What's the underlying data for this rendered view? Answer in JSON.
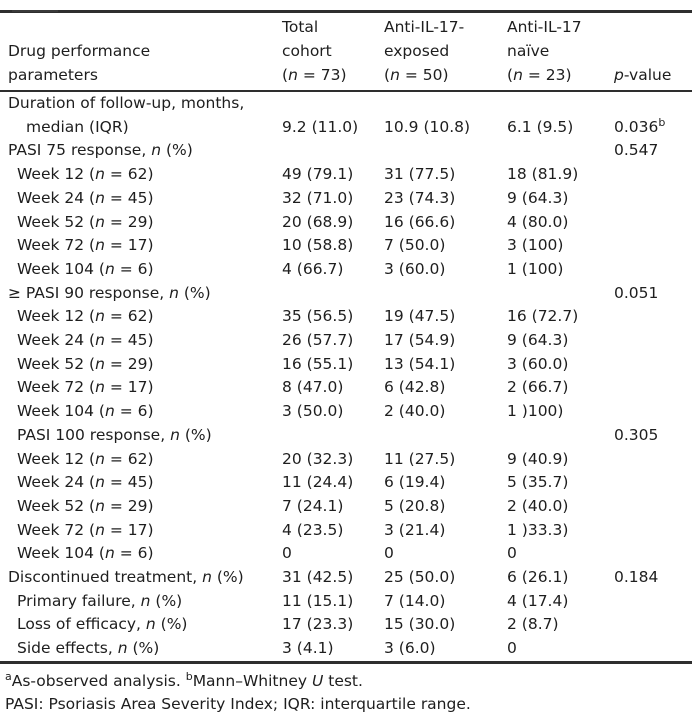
{
  "colors": {
    "background": "#ffffff",
    "text": "#1e1e1e",
    "rule": "#2e2e2e"
  },
  "table": {
    "header": {
      "parameters": "Drug performance\nparameters",
      "total_cohort": "Total\ncohort\n(*n* = 73)",
      "exposed": "Anti-IL-17-\nexposed\n(*n* = 50)",
      "naive": "Anti-IL-17\nnaïve\n(*n* = 23)",
      "p_value": "*p*-value"
    },
    "rows": [
      {
        "label": "Duration of follow-up, months,\nmedian (IQR)",
        "indent": 0,
        "hang": true,
        "total": "9.2 (11.0)",
        "exposed": "10.9 (10.8)",
        "naive": "6.1 (9.5)",
        "p": "0.036^b^"
      },
      {
        "label": "PASI 75 response, *n* (%)",
        "indent": 0,
        "total": "",
        "exposed": "",
        "naive": "",
        "p": "0.547"
      },
      {
        "label": "Week 12 (*n* = 62)",
        "indent": 1,
        "total": "49 (79.1)",
        "exposed": "31 (77.5)",
        "naive": "18 (81.9)",
        "p": ""
      },
      {
        "label": "Week 24 (*n* = 45)",
        "indent": 1,
        "total": "32 (71.0)",
        "exposed": "23 (74.3)",
        "naive": "9 (64.3)",
        "p": ""
      },
      {
        "label": "Week 52 (*n* = 29)",
        "indent": 1,
        "total": "20 (68.9)",
        "exposed": "16 (66.6)",
        "naive": "4 (80.0)",
        "p": ""
      },
      {
        "label": "Week 72 (*n* = 17)",
        "indent": 1,
        "total": "10 (58.8)",
        "exposed": "7 (50.0)",
        "naive": "3 (100)",
        "p": ""
      },
      {
        "label": "Week 104 (*n* = 6)",
        "indent": 1,
        "total": "4 (66.7)",
        "exposed": "3 (60.0)",
        "naive": "1 (100)",
        "p": ""
      },
      {
        "label": "≥ PASI 90 response, *n* (%)",
        "indent": 0,
        "total": "",
        "exposed": "",
        "naive": "",
        "p": "0.051"
      },
      {
        "label": "Week 12 (*n* = 62)",
        "indent": 1,
        "total": "35 (56.5)",
        "exposed": "19 (47.5)",
        "naive": "16 (72.7)",
        "p": ""
      },
      {
        "label": "Week 24 (*n* = 45)",
        "indent": 1,
        "total": "26 (57.7)",
        "exposed": "17 (54.9)",
        "naive": "9 (64.3)",
        "p": ""
      },
      {
        "label": "Week 52 (*n* = 29)",
        "indent": 1,
        "total": "16 (55.1)",
        "exposed": "13 (54.1)",
        "naive": "3 (60.0)",
        "p": ""
      },
      {
        "label": "Week 72 (*n* = 17)",
        "indent": 1,
        "total": "8 (47.0)",
        "exposed": "6 (42.8)",
        "naive": "2 (66.7)",
        "p": ""
      },
      {
        "label": "Week 104 (*n* = 6)",
        "indent": 1,
        "total": "3 (50.0)",
        "exposed": "2 (40.0)",
        "naive": "1 )100)",
        "p": ""
      },
      {
        "label": "PASI 100 response, *n* (%)",
        "indent": 1,
        "total": "",
        "exposed": "",
        "naive": "",
        "p": "0.305"
      },
      {
        "label": "Week 12 (*n* = 62)",
        "indent": 1,
        "total": "20 (32.3)",
        "exposed": "11 (27.5)",
        "naive": "9 (40.9)",
        "p": ""
      },
      {
        "label": "Week 24 (*n* = 45)",
        "indent": 1,
        "total": "11 (24.4)",
        "exposed": "6 (19.4)",
        "naive": "5 (35.7)",
        "p": ""
      },
      {
        "label": "Week 52 (*n* = 29)",
        "indent": 1,
        "total": "7 (24.1)",
        "exposed": "5 (20.8)",
        "naive": "2 (40.0)",
        "p": ""
      },
      {
        "label": "Week 72 (*n* = 17)",
        "indent": 1,
        "total": "4 (23.5)",
        "exposed": "3 (21.4)",
        "naive": "1 )33.3)",
        "p": ""
      },
      {
        "label": "Week 104 (*n* = 6)",
        "indent": 1,
        "total": "0",
        "exposed": "0",
        "naive": "0",
        "p": ""
      },
      {
        "label": "Discontinued treatment, *n* (%)",
        "indent": 0,
        "total": "31 (42.5)",
        "exposed": "25 (50.0)",
        "naive": "6 (26.1)",
        "p": "0.184"
      },
      {
        "label": "Primary failure, *n* (%)",
        "indent": 1,
        "total": "11 (15.1)",
        "exposed": "7 (14.0)",
        "naive": "4 (17.4)",
        "p": ""
      },
      {
        "label": "Loss of efficacy, *n* (%)",
        "indent": 1,
        "total": "17 (23.3)",
        "exposed": "15 (30.0)",
        "naive": "2 (8.7)",
        "p": ""
      },
      {
        "label": "Side effects, *n* (%)",
        "indent": 1,
        "total": "3 (4.1)",
        "exposed": "3 (6.0)",
        "naive": "0",
        "p": ""
      }
    ],
    "footnotes": [
      "^a^As-observed analysis. ^b^Mann–Whitney *U* test.",
      "PASI: Psoriasis Area Severity Index; IQR: interquartile range."
    ]
  }
}
